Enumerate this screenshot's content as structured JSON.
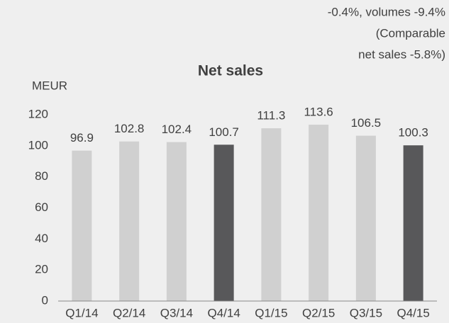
{
  "chart_data": {
    "type": "bar",
    "title": "Net sales",
    "y_label": "MEUR",
    "annotations": [
      "-0.4%, volumes -9.4%",
      "(Comparable",
      "net sales  -5.8%)"
    ],
    "categories": [
      "Q1/14",
      "Q2/14",
      "Q3/14",
      "Q4/14",
      "Q1/15",
      "Q2/15",
      "Q3/15",
      "Q4/15"
    ],
    "values": [
      96.9,
      102.8,
      102.4,
      100.7,
      111.3,
      113.6,
      106.5,
      100.3
    ],
    "colors": [
      "#d0d0d0",
      "#d0d0d0",
      "#d0d0d0",
      "#58585a",
      "#d0d0d0",
      "#d0d0d0",
      "#d0d0d0",
      "#58585a"
    ],
    "ylim": [
      0,
      120
    ],
    "yticks": [
      0,
      20,
      40,
      60,
      80,
      100,
      120
    ],
    "grid": false
  }
}
